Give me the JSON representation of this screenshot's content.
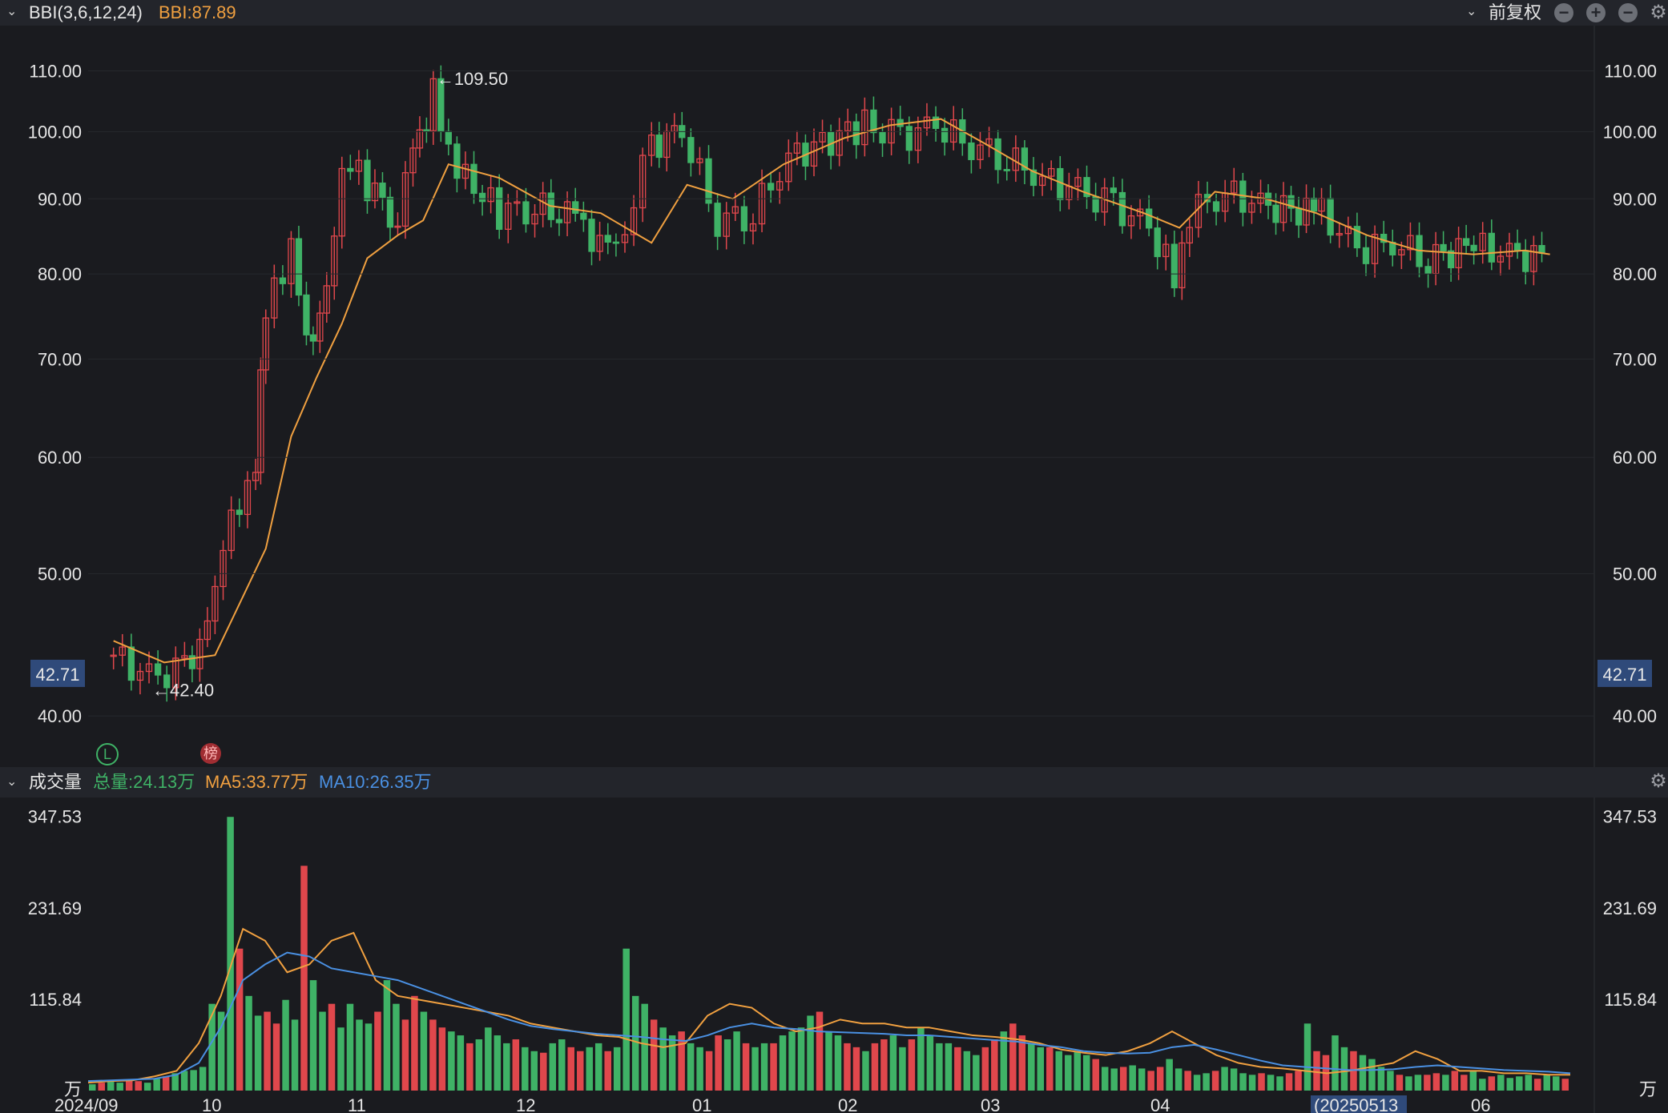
{
  "header": {
    "indicator_name": "BBI(3,6,12,24)",
    "indicator_value": "BBI:87.89",
    "adjust_label": "前复权",
    "colors": {
      "accent": "#f0a040",
      "up": "#e0474c",
      "down": "#3fb266",
      "blue": "#4a90e2"
    }
  },
  "volume_header": {
    "label": "成交量",
    "total": "总量:24.13万",
    "ma5": "MA5:33.77万",
    "ma10": "MA10:26.35万"
  },
  "badges": {
    "l": "L",
    "bang": "榜"
  },
  "chart_data": [
    {
      "type": "candlestick",
      "title": "",
      "y_scale": "log",
      "y_ticks": [
        "110.00",
        "100.00",
        "90.00",
        "80.00",
        "70.00",
        "60.00",
        "50.00",
        "40.00"
      ],
      "y_tick_values": [
        110,
        100,
        90,
        80,
        70,
        60,
        50,
        40
      ],
      "ylim": [
        38,
        114
      ],
      "current_price": "42.71",
      "high_annotation": "←109.50",
      "low_annotation": "←42.40",
      "series": [
        {
          "name": "BBI",
          "type": "line",
          "x": [
            "2024-09-10",
            "2024-09-20",
            "2024-09-30",
            "2024-10-10",
            "2024-10-15",
            "2024-10-20",
            "2024-10-25",
            "2024-10-30",
            "2024-11-05",
            "2024-11-10",
            "2024-11-15",
            "2024-11-25",
            "2024-12-05",
            "2024-12-15",
            "2024-12-25",
            "2025-01-01",
            "2025-01-10",
            "2025-01-20",
            "2025-02-01",
            "2025-02-10",
            "2025-02-20",
            "2025-03-01",
            "2025-03-10",
            "2025-03-20",
            "2025-04-01",
            "2025-04-08",
            "2025-04-15",
            "2025-04-25",
            "2025-05-05",
            "2025-05-15",
            "2025-05-25",
            "2025-06-05",
            "2025-06-15",
            "2025-06-20"
          ],
          "values": [
            45,
            43.5,
            44,
            52,
            62,
            68,
            74,
            82,
            85,
            87,
            95,
            93,
            89,
            88,
            84,
            92,
            90,
            95,
            99,
            101,
            102,
            98,
            94,
            91,
            88,
            86,
            91,
            90,
            88,
            85,
            83,
            82.5,
            83,
            82.5
          ]
        },
        {
          "name": "price_close",
          "type": "candle-closes",
          "x": [
            "2024-09-10",
            "2024-09-17",
            "2024-09-24",
            "2024-09-27",
            "2024-09-30",
            "2024-10-08",
            "2024-10-10",
            "2024-10-15",
            "2024-10-18",
            "2024-10-22",
            "2024-10-25",
            "2024-10-30",
            "2024-11-05",
            "2024-11-08",
            "2024-11-12",
            "2024-11-15",
            "2024-11-20",
            "2024-11-25",
            "2024-12-02",
            "2024-12-10",
            "2024-12-18",
            "2024-12-25",
            "2024-12-31",
            "2025-01-07",
            "2025-01-14",
            "2025-01-21",
            "2025-02-05",
            "2025-02-12",
            "2025-02-19",
            "2025-02-26",
            "2025-03-05",
            "2025-03-12",
            "2025-03-19",
            "2025-03-26",
            "2025-04-02",
            "2025-04-07",
            "2025-04-10",
            "2025-04-17",
            "2025-04-24",
            "2025-05-06",
            "2025-05-13",
            "2025-05-20",
            "2025-05-27",
            "2025-06-05",
            "2025-06-12",
            "2025-06-20"
          ],
          "values": [
            44,
            42.5,
            43,
            45,
            50,
            60,
            75,
            83,
            71,
            78,
            96,
            92,
            87,
            96,
            106,
            97,
            92,
            88,
            89,
            87,
            82,
            98,
            100,
            87,
            88,
            96,
            101,
            99,
            101,
            98,
            96,
            93,
            91,
            89,
            86,
            80,
            88,
            91,
            89,
            88,
            83,
            84,
            82,
            83.5,
            82.5,
            82
          ]
        }
      ]
    },
    {
      "type": "bar",
      "title": "",
      "y_ticks": [
        "347.53",
        "231.69",
        "115.84",
        "万"
      ],
      "y_tick_values": [
        347.53,
        231.69,
        115.84,
        0
      ],
      "ylim": [
        0,
        347.53
      ],
      "unit": "万",
      "x_ticks": [
        "2024/09",
        "10",
        "11",
        "12",
        "01",
        "02",
        "03",
        "04",
        "(20250513",
        "06"
      ],
      "highlight_date": "(20250513",
      "series": [
        {
          "name": "volume",
          "values": [
            8,
            10,
            12,
            10,
            14,
            12,
            10,
            15,
            18,
            22,
            25,
            26,
            30,
            110,
            100,
            347,
            180,
            120,
            95,
            100,
            85,
            115,
            90,
            285,
            140,
            100,
            110,
            80,
            110,
            90,
            85,
            100,
            140,
            110,
            90,
            120,
            100,
            90,
            80,
            75,
            70,
            60,
            65,
            80,
            70,
            60,
            65,
            55,
            50,
            48,
            60,
            65,
            55,
            50,
            55,
            60,
            50,
            55,
            180,
            120,
            110,
            90,
            80,
            70,
            75,
            60,
            55,
            50,
            70,
            65,
            75,
            60,
            55,
            60,
            60,
            70,
            75,
            80,
            95,
            100,
            75,
            70,
            60,
            55,
            50,
            60,
            65,
            70,
            55,
            65,
            80,
            70,
            60,
            60,
            55,
            50,
            45,
            55,
            65,
            75,
            85,
            70,
            60,
            55,
            55,
            50,
            45,
            50,
            45,
            40,
            30,
            28,
            30,
            32,
            28,
            25,
            30,
            40,
            28,
            25,
            20,
            22,
            25,
            30,
            28,
            22,
            20,
            22,
            20,
            18,
            22,
            25,
            85,
            50,
            45,
            70,
            55,
            50,
            45,
            40,
            30,
            25,
            20,
            18,
            20,
            20,
            22,
            20,
            25,
            20,
            25,
            15,
            18,
            20,
            16,
            18,
            20,
            15,
            20,
            18,
            15
          ]
        },
        {
          "name": "MA5",
          "values": [
            10,
            12,
            13,
            18,
            25,
            60,
            120,
            205,
            190,
            150,
            160,
            190,
            200,
            140,
            120,
            115,
            110,
            105,
            100,
            95,
            85,
            80,
            75,
            70,
            68,
            60,
            55,
            60,
            95,
            110,
            105,
            85,
            75,
            80,
            90,
            85,
            85,
            80,
            80,
            75,
            70,
            68,
            65,
            60,
            52,
            48,
            45,
            50,
            60,
            75,
            60,
            45,
            35,
            30,
            28,
            25,
            22,
            25,
            30,
            35,
            50,
            40,
            25,
            25,
            22,
            22,
            20,
            20
          ]
        },
        {
          "name": "MA10",
          "values": [
            12,
            13,
            14,
            15,
            20,
            35,
            80,
            140,
            160,
            175,
            170,
            155,
            150,
            145,
            140,
            130,
            120,
            110,
            100,
            90,
            82,
            78,
            75,
            72,
            70,
            68,
            65,
            63,
            70,
            80,
            85,
            80,
            78,
            75,
            74,
            73,
            72,
            70,
            70,
            68,
            66,
            64,
            62,
            58,
            55,
            50,
            48,
            47,
            48,
            55,
            58,
            52,
            45,
            38,
            32,
            30,
            28,
            26,
            26,
            27,
            30,
            32,
            30,
            28,
            26,
            25,
            24,
            22
          ]
        }
      ]
    }
  ]
}
